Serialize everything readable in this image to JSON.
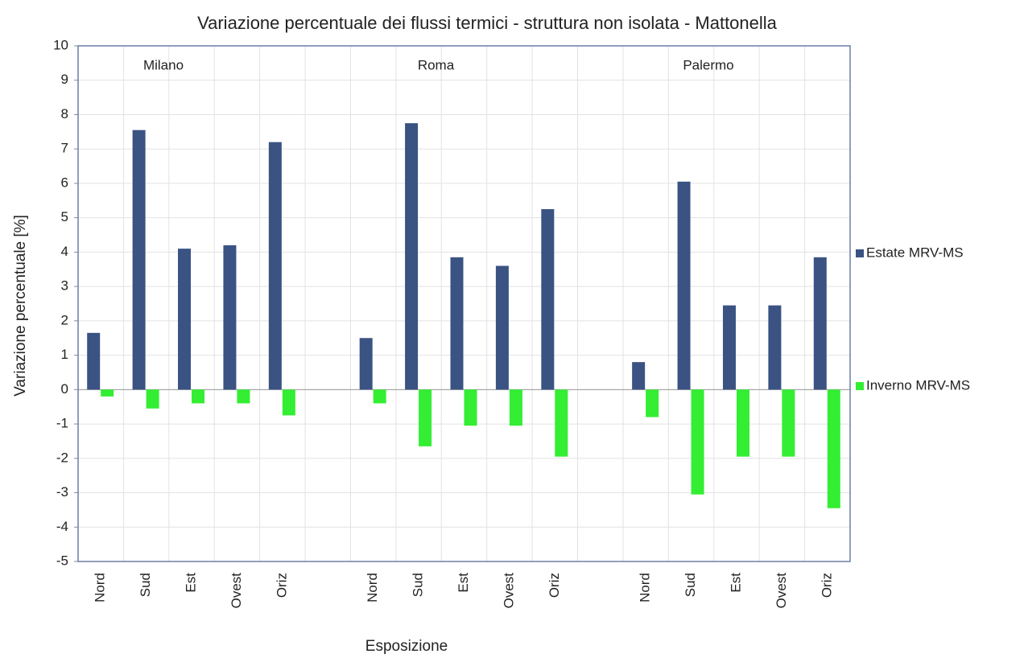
{
  "chart_data": {
    "type": "bar",
    "title": "Variazione percentuale dei flussi termici - struttura non isolata - Mattonella",
    "x_label": "Esposizione",
    "y_label": "Variazione percentuale [%]",
    "annotations": [
      "Milano",
      "Roma",
      "Palermo"
    ],
    "categories": [
      "Nord",
      "Sud",
      "Est",
      "Ovest",
      "Oriz",
      null,
      "Nord",
      "Sud",
      "Est",
      "Ovest",
      "Oriz",
      null,
      "Nord",
      "Sud",
      "Est",
      "Ovest",
      "Oriz"
    ],
    "series": [
      {
        "name": "Estate MRV-MS",
        "color": "#3a5383",
        "values": [
          1.65,
          7.55,
          4.1,
          4.2,
          7.2,
          null,
          1.5,
          7.75,
          3.85,
          3.6,
          5.25,
          null,
          0.8,
          6.05,
          2.45,
          2.45,
          3.85
        ]
      },
      {
        "name": "Inverno MRV-MS",
        "color": "#33ee33",
        "values": [
          -0.2,
          -0.55,
          -0.4,
          -0.4,
          -0.75,
          null,
          -0.4,
          -1.65,
          -1.05,
          -1.05,
          -1.95,
          null,
          -0.8,
          -3.05,
          -1.95,
          -1.95,
          -3.45
        ]
      }
    ],
    "ylim": [
      -5,
      10
    ],
    "yticks": [
      -5,
      -4,
      -3,
      -2,
      -1,
      0,
      1,
      2,
      3,
      4,
      5,
      6,
      7,
      8,
      9,
      10
    ],
    "grid": true,
    "legend": "right"
  }
}
